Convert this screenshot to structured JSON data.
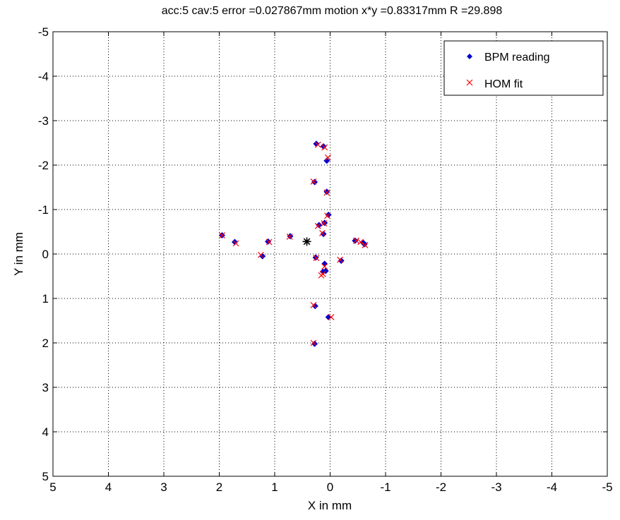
{
  "chart_data": {
    "type": "scatter",
    "title": "acc:5 cav:5  error =0.027867mm  motion x*y =0.83317mm  R =29.898",
    "xlabel": "X in mm",
    "ylabel": "Y in mm",
    "xlim": [
      5,
      -5
    ],
    "ylim": [
      -5,
      5
    ],
    "x_reversed": true,
    "y_reversed": true,
    "xticks": [
      5,
      4,
      3,
      2,
      1,
      0,
      -1,
      -2,
      -3,
      -4,
      -5
    ],
    "yticks": [
      -5,
      -4,
      -3,
      -2,
      -1,
      0,
      1,
      2,
      3,
      4,
      5
    ],
    "xtick_labels": [
      "5",
      "4",
      "3",
      "2",
      "1",
      "0",
      "-1",
      "-2",
      "-3",
      "-4",
      "-5"
    ],
    "ytick_labels": [
      "-5",
      "-4",
      "-3",
      "-2",
      "-1",
      "0",
      "1",
      "2",
      "3",
      "4",
      "5"
    ],
    "grid": true,
    "legend": {
      "position": "top-right",
      "entries": [
        "BPM reading",
        "HOM fit"
      ]
    },
    "series": [
      {
        "name": "BPM reading",
        "marker": "diamond",
        "color": "#0000cc",
        "points": [
          [
            0.25,
            -2.48
          ],
          [
            0.12,
            -2.42
          ],
          [
            0.06,
            -2.1
          ],
          [
            0.28,
            -1.62
          ],
          [
            0.06,
            -1.4
          ],
          [
            0.03,
            -0.88
          ],
          [
            0.1,
            -0.7
          ],
          [
            0.2,
            -0.65
          ],
          [
            0.12,
            -0.45
          ],
          [
            0.72,
            -0.4
          ],
          [
            1.12,
            -0.28
          ],
          [
            1.72,
            -0.27
          ],
          [
            1.95,
            -0.42
          ],
          [
            1.22,
            0.05
          ],
          [
            0.26,
            0.08
          ],
          [
            -0.2,
            0.15
          ],
          [
            -0.45,
            -0.3
          ],
          [
            -0.6,
            -0.25
          ],
          [
            -0.62,
            -0.22
          ],
          [
            0.1,
            0.22
          ],
          [
            0.08,
            0.38
          ],
          [
            0.13,
            0.4
          ],
          [
            0.27,
            1.17
          ],
          [
            0.03,
            1.42
          ],
          [
            0.28,
            2.02
          ]
        ]
      },
      {
        "name": "HOM fit",
        "marker": "x",
        "color": "#ff0000",
        "points": [
          [
            0.22,
            -2.46
          ],
          [
            0.1,
            -2.4
          ],
          [
            0.04,
            -2.17
          ],
          [
            0.3,
            -1.63
          ],
          [
            0.06,
            -1.38
          ],
          [
            0.05,
            -0.86
          ],
          [
            0.11,
            -0.69
          ],
          [
            0.22,
            -0.63
          ],
          [
            0.14,
            -0.47
          ],
          [
            0.73,
            -0.39
          ],
          [
            1.1,
            -0.27
          ],
          [
            1.7,
            -0.24
          ],
          [
            1.95,
            -0.42
          ],
          [
            1.25,
            0.02
          ],
          [
            0.25,
            0.09
          ],
          [
            -0.18,
            0.13
          ],
          [
            -0.47,
            -0.3
          ],
          [
            -0.55,
            -0.27
          ],
          [
            -0.63,
            -0.2
          ],
          [
            0.1,
            0.28
          ],
          [
            0.13,
            0.45
          ],
          [
            0.16,
            0.48
          ],
          [
            0.3,
            1.15
          ],
          [
            -0.02,
            1.42
          ],
          [
            0.3,
            2.0
          ]
        ]
      },
      {
        "marker": "asterisk",
        "color": "#000000",
        "points": [
          [
            0.42,
            -0.28
          ]
        ]
      }
    ]
  }
}
